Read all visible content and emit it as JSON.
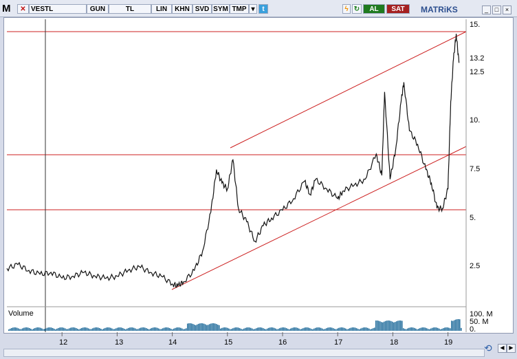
{
  "toolbar": {
    "logo": "M",
    "symbol": "VESTL",
    "buttons": [
      "GUN",
      "TL",
      "LIN",
      "KHN",
      "SVD",
      "SYM",
      "TMP"
    ],
    "buy_label": "AL",
    "sell_label": "SAT",
    "brand": "MATRiKS",
    "window_buttons": [
      "_",
      "□",
      "×"
    ]
  },
  "colors": {
    "buy": "#1f7a1f",
    "sell": "#a52020",
    "line": "#cc1f1f"
  },
  "y_axis": {
    "labels": [
      "15.",
      "13.2",
      "12.5",
      "10.",
      "7.5",
      "5.",
      "2.5"
    ]
  },
  "volume": {
    "label": "Volume",
    "ticks": [
      "100. M",
      "50. M",
      "0."
    ]
  },
  "x_axis": {
    "labels": [
      "12",
      "13",
      "14",
      "15",
      "16",
      "17",
      "18",
      "19"
    ]
  },
  "chart_data": {
    "type": "line",
    "series_name": "VESTL",
    "x_start": "2011",
    "points": [
      [
        "2011.0",
        2.4
      ],
      [
        "2011.2",
        2.6
      ],
      [
        "2011.4",
        2.3
      ],
      [
        "2011.6",
        2.1
      ],
      [
        "2011.8",
        2.2
      ],
      [
        "2012.0",
        1.9
      ],
      [
        "2012.2",
        2.0
      ],
      [
        "2012.4",
        2.2
      ],
      [
        "2012.6",
        2.0
      ],
      [
        "2012.8",
        1.9
      ],
      [
        "2013.0",
        2.0
      ],
      [
        "2013.2",
        2.3
      ],
      [
        "2013.4",
        2.5
      ],
      [
        "2013.6",
        2.2
      ],
      [
        "2013.8",
        2.0
      ],
      [
        "2014.0",
        1.6
      ],
      [
        "2014.1",
        1.5
      ],
      [
        "2014.2",
        1.7
      ],
      [
        "2014.4",
        2.3
      ],
      [
        "2014.55",
        3.3
      ],
      [
        "2014.7",
        5.3
      ],
      [
        "2014.8",
        7.5
      ],
      [
        "2014.9",
        6.8
      ],
      [
        "2015.0",
        6.5
      ],
      [
        "2015.1",
        8.0
      ],
      [
        "2015.2",
        5.5
      ],
      [
        "2015.35",
        4.8
      ],
      [
        "2015.5",
        3.8
      ],
      [
        "2015.65",
        4.6
      ],
      [
        "2015.8",
        5.0
      ],
      [
        "2016.0",
        5.4
      ],
      [
        "2016.2",
        6.0
      ],
      [
        "2016.4",
        6.9
      ],
      [
        "2016.5",
        6.2
      ],
      [
        "2016.6",
        7.0
      ],
      [
        "2016.8",
        6.5
      ],
      [
        "2017.0",
        6.0
      ],
      [
        "2017.1",
        6.4
      ],
      [
        "2017.3",
        6.7
      ],
      [
        "2017.5",
        7.0
      ],
      [
        "2017.7",
        8.3
      ],
      [
        "2017.8",
        7.2
      ],
      [
        "2017.85",
        11.5
      ],
      [
        "2017.95",
        7.0
      ],
      [
        "2018.05",
        8.5
      ],
      [
        "2018.15",
        11.0
      ],
      [
        "2018.2",
        12.0
      ],
      [
        "2018.3",
        9.5
      ],
      [
        "2018.45",
        8.8
      ],
      [
        "2018.6",
        7.5
      ],
      [
        "2018.7",
        6.8
      ],
      [
        "2018.8",
        5.5
      ],
      [
        "2018.9",
        5.5
      ],
      [
        "2019.0",
        6.5
      ],
      [
        "2019.05",
        11.0
      ],
      [
        "2019.1",
        13.2
      ],
      [
        "2019.15",
        14.5
      ],
      [
        "2019.2",
        13.0
      ]
    ],
    "ylim": [
      0.5,
      15.5
    ],
    "log_scale": false
  }
}
